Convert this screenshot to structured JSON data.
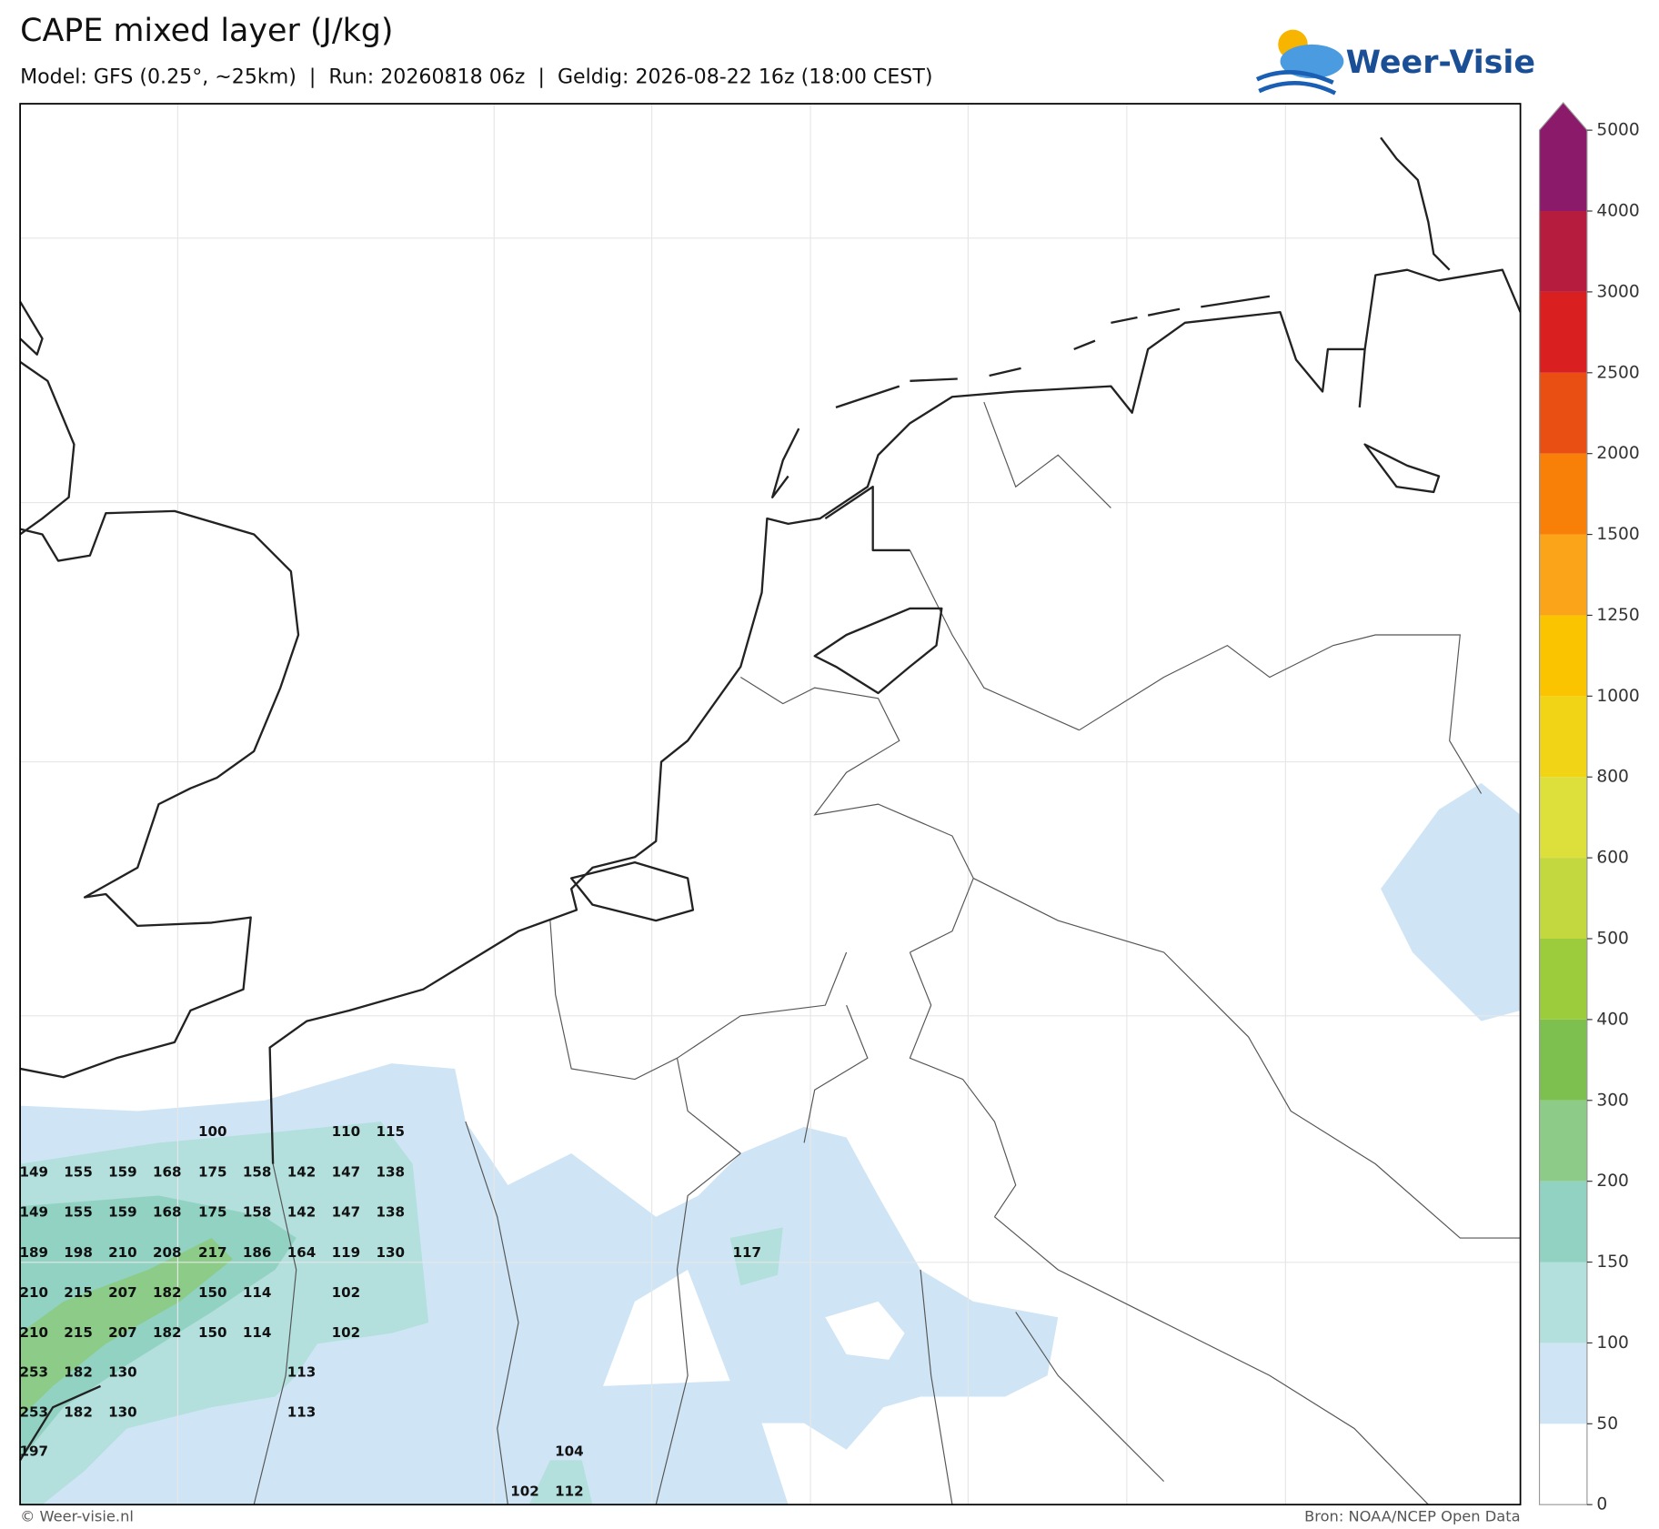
{
  "header": {
    "title": "CAPE mixed layer (J/kg)",
    "subtitle": "Model: GFS (0.25°, ~25km)  |  Run: 20260818 06z  |  Geldig: 2026-08-22 16z (18:00 CEST)"
  },
  "logo": {
    "text": "Weer-Visie"
  },
  "map": {
    "values": [
      100,
      110,
      115,
      149,
      155,
      159,
      168,
      175,
      158,
      142,
      147,
      138,
      149,
      155,
      159,
      168,
      175,
      158,
      142,
      147,
      138,
      189,
      198,
      210,
      208,
      217,
      186,
      164,
      119,
      130,
      117,
      210,
      215,
      207,
      182,
      150,
      114,
      102,
      210,
      215,
      207,
      182,
      150,
      114,
      102,
      253,
      182,
      130,
      113,
      253,
      182,
      130,
      113,
      197,
      104,
      102,
      112
    ]
  },
  "colorbar": {
    "ticks": [
      0,
      50,
      100,
      150,
      200,
      300,
      400,
      500,
      600,
      800,
      1000,
      1250,
      1500,
      2000,
      2500,
      3000,
      4000,
      5000
    ],
    "colors": [
      "#ffffff",
      "#cfe5f5",
      "#b3dfdc",
      "#92d2c3",
      "#8ccb88",
      "#7dc050",
      "#9ccc3c",
      "#c3d83e",
      "#dde03a",
      "#f2d417",
      "#fbc400",
      "#fba41a",
      "#f88008",
      "#e94e13",
      "#d91f1f",
      "#b51c3d",
      "#8b1a6b"
    ]
  },
  "footer": {
    "left": "© Weer-visie.nl",
    "right": "Bron: NOAA/NCEP Open Data"
  }
}
